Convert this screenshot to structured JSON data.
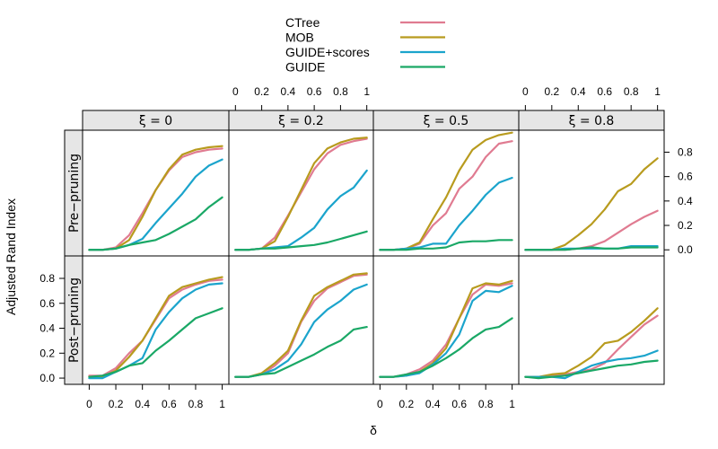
{
  "chart_data": {
    "type": "line",
    "xlabel": "δ",
    "ylabel": "Adjusted Rand Index",
    "x": [
      0,
      0.1,
      0.2,
      0.3,
      0.4,
      0.5,
      0.6,
      0.7,
      0.8,
      0.9,
      1.0
    ],
    "xlim": [
      -0.05,
      1.05
    ],
    "ylim": [
      -0.05,
      0.98
    ],
    "x_ticks": [
      "0",
      "0.2",
      "0.4",
      "0.6",
      "0.8",
      "1"
    ],
    "x_tick_values": [
      0,
      0.2,
      0.4,
      0.6,
      0.8,
      1
    ],
    "y_ticks": [
      "0.0",
      "0.2",
      "0.4",
      "0.6",
      "0.8"
    ],
    "y_tick_values": [
      0,
      0.2,
      0.4,
      0.6,
      0.8
    ],
    "legend": [
      {
        "name": "CTree",
        "color": "#e07b91"
      },
      {
        "name": "MOB",
        "color": "#b89b1e"
      },
      {
        "name": "GUIDE+scores",
        "color": "#1ba4cc"
      },
      {
        "name": "GUIDE",
        "color": "#1aa866"
      }
    ],
    "legend_position": "top-center",
    "columns": [
      {
        "label": "ξ = 0"
      },
      {
        "label": "ξ = 0.2"
      },
      {
        "label": "ξ = 0.5"
      },
      {
        "label": "ξ = 0.8"
      }
    ],
    "rows": [
      {
        "label": "Pre−pruning"
      },
      {
        "label": "Post−pruning"
      }
    ],
    "panels": [
      {
        "row": 0,
        "col": 0,
        "series": [
          {
            "name": "CTree",
            "values": [
              0.0,
              0.0,
              0.02,
              0.12,
              0.3,
              0.49,
              0.65,
              0.76,
              0.8,
              0.82,
              0.83
            ]
          },
          {
            "name": "MOB",
            "values": [
              0.0,
              0.0,
              0.01,
              0.08,
              0.27,
              0.49,
              0.66,
              0.78,
              0.82,
              0.84,
              0.85
            ]
          },
          {
            "name": "GUIDE+scores",
            "values": [
              0.0,
              0.0,
              0.01,
              0.04,
              0.09,
              0.22,
              0.34,
              0.46,
              0.6,
              0.69,
              0.74
            ]
          },
          {
            "name": "GUIDE",
            "values": [
              0.0,
              0.0,
              0.01,
              0.04,
              0.06,
              0.08,
              0.13,
              0.19,
              0.25,
              0.35,
              0.43
            ]
          }
        ]
      },
      {
        "row": 0,
        "col": 1,
        "series": [
          {
            "name": "CTree",
            "values": [
              0.0,
              0.0,
              0.01,
              0.1,
              0.28,
              0.47,
              0.66,
              0.79,
              0.86,
              0.89,
              0.91
            ]
          },
          {
            "name": "MOB",
            "values": [
              0.0,
              0.0,
              0.01,
              0.07,
              0.27,
              0.49,
              0.71,
              0.83,
              0.88,
              0.91,
              0.92
            ]
          },
          {
            "name": "GUIDE+scores",
            "values": [
              0.0,
              0.0,
              0.01,
              0.02,
              0.03,
              0.1,
              0.18,
              0.33,
              0.44,
              0.51,
              0.65
            ]
          },
          {
            "name": "GUIDE",
            "values": [
              0.0,
              0.0,
              0.01,
              0.01,
              0.02,
              0.03,
              0.04,
              0.06,
              0.09,
              0.12,
              0.15
            ]
          }
        ]
      },
      {
        "row": 0,
        "col": 2,
        "series": [
          {
            "name": "CTree",
            "values": [
              0.0,
              0.0,
              0.01,
              0.05,
              0.2,
              0.3,
              0.5,
              0.6,
              0.76,
              0.87,
              0.89
            ]
          },
          {
            "name": "MOB",
            "values": [
              0.0,
              0.0,
              0.01,
              0.06,
              0.25,
              0.43,
              0.65,
              0.82,
              0.9,
              0.94,
              0.96
            ]
          },
          {
            "name": "GUIDE+scores",
            "values": [
              0.0,
              0.0,
              0.01,
              0.02,
              0.05,
              0.05,
              0.2,
              0.32,
              0.45,
              0.55,
              0.59
            ]
          },
          {
            "name": "GUIDE",
            "values": [
              0.0,
              0.0,
              0.0,
              0.01,
              0.01,
              0.02,
              0.06,
              0.07,
              0.07,
              0.08,
              0.08
            ]
          }
        ]
      },
      {
        "row": 0,
        "col": 3,
        "series": [
          {
            "name": "CTree",
            "values": [
              0.0,
              0.0,
              0.0,
              0.0,
              0.01,
              0.03,
              0.07,
              0.14,
              0.21,
              0.27,
              0.32
            ]
          },
          {
            "name": "MOB",
            "values": [
              0.0,
              0.0,
              0.0,
              0.04,
              0.12,
              0.21,
              0.33,
              0.48,
              0.54,
              0.66,
              0.75
            ]
          },
          {
            "name": "GUIDE+scores",
            "values": [
              0.0,
              0.0,
              0.0,
              0.01,
              0.01,
              0.01,
              0.01,
              0.01,
              0.03,
              0.03,
              0.03
            ]
          },
          {
            "name": "GUIDE",
            "values": [
              0.0,
              0.0,
              0.0,
              0.0,
              0.01,
              0.02,
              0.01,
              0.01,
              0.02,
              0.02,
              0.02
            ]
          }
        ]
      },
      {
        "row": 1,
        "col": 0,
        "series": [
          {
            "name": "CTree",
            "values": [
              0.02,
              0.02,
              0.08,
              0.2,
              0.3,
              0.47,
              0.64,
              0.71,
              0.75,
              0.78,
              0.79
            ]
          },
          {
            "name": "MOB",
            "values": [
              0.01,
              0.01,
              0.06,
              0.17,
              0.3,
              0.48,
              0.66,
              0.73,
              0.76,
              0.79,
              0.81
            ]
          },
          {
            "name": "GUIDE+scores",
            "values": [
              0.0,
              0.0,
              0.05,
              0.1,
              0.16,
              0.39,
              0.53,
              0.64,
              0.71,
              0.75,
              0.76
            ]
          },
          {
            "name": "GUIDE",
            "values": [
              0.01,
              0.02,
              0.05,
              0.1,
              0.12,
              0.22,
              0.3,
              0.39,
              0.48,
              0.52,
              0.56
            ]
          }
        ]
      },
      {
        "row": 1,
        "col": 1,
        "series": [
          {
            "name": "CTree",
            "values": [
              0.01,
              0.01,
              0.03,
              0.1,
              0.2,
              0.45,
              0.62,
              0.72,
              0.77,
              0.82,
              0.83
            ]
          },
          {
            "name": "MOB",
            "values": [
              0.01,
              0.01,
              0.04,
              0.12,
              0.22,
              0.46,
              0.66,
              0.73,
              0.78,
              0.83,
              0.84
            ]
          },
          {
            "name": "GUIDE+scores",
            "values": [
              0.01,
              0.01,
              0.03,
              0.07,
              0.14,
              0.27,
              0.45,
              0.55,
              0.62,
              0.71,
              0.75
            ]
          },
          {
            "name": "GUIDE",
            "values": [
              0.01,
              0.01,
              0.03,
              0.04,
              0.09,
              0.14,
              0.19,
              0.25,
              0.3,
              0.39,
              0.41
            ]
          }
        ]
      },
      {
        "row": 1,
        "col": 2,
        "series": [
          {
            "name": "CTree",
            "values": [
              0.01,
              0.01,
              0.03,
              0.07,
              0.14,
              0.27,
              0.48,
              0.67,
              0.75,
              0.74,
              0.76
            ]
          },
          {
            "name": "MOB",
            "values": [
              0.01,
              0.01,
              0.02,
              0.05,
              0.12,
              0.24,
              0.48,
              0.72,
              0.76,
              0.75,
              0.78
            ]
          },
          {
            "name": "GUIDE+scores",
            "values": [
              0.01,
              0.01,
              0.02,
              0.04,
              0.11,
              0.2,
              0.35,
              0.62,
              0.7,
              0.69,
              0.74
            ]
          },
          {
            "name": "GUIDE",
            "values": [
              0.01,
              0.01,
              0.03,
              0.05,
              0.1,
              0.16,
              0.23,
              0.32,
              0.39,
              0.41,
              0.48
            ]
          }
        ]
      },
      {
        "row": 1,
        "col": 3,
        "series": [
          {
            "name": "CTree",
            "values": [
              0.01,
              0.01,
              0.02,
              0.03,
              0.05,
              0.07,
              0.12,
              0.23,
              0.33,
              0.43,
              0.5
            ]
          },
          {
            "name": "MOB",
            "values": [
              0.01,
              0.01,
              0.03,
              0.04,
              0.1,
              0.17,
              0.28,
              0.3,
              0.37,
              0.46,
              0.56
            ]
          },
          {
            "name": "GUIDE+scores",
            "values": [
              0.01,
              0.01,
              0.01,
              0.0,
              0.05,
              0.1,
              0.13,
              0.15,
              0.16,
              0.18,
              0.22
            ]
          },
          {
            "name": "GUIDE",
            "values": [
              0.01,
              0.0,
              0.01,
              0.02,
              0.04,
              0.06,
              0.08,
              0.1,
              0.11,
              0.13,
              0.14
            ]
          }
        ]
      }
    ]
  }
}
